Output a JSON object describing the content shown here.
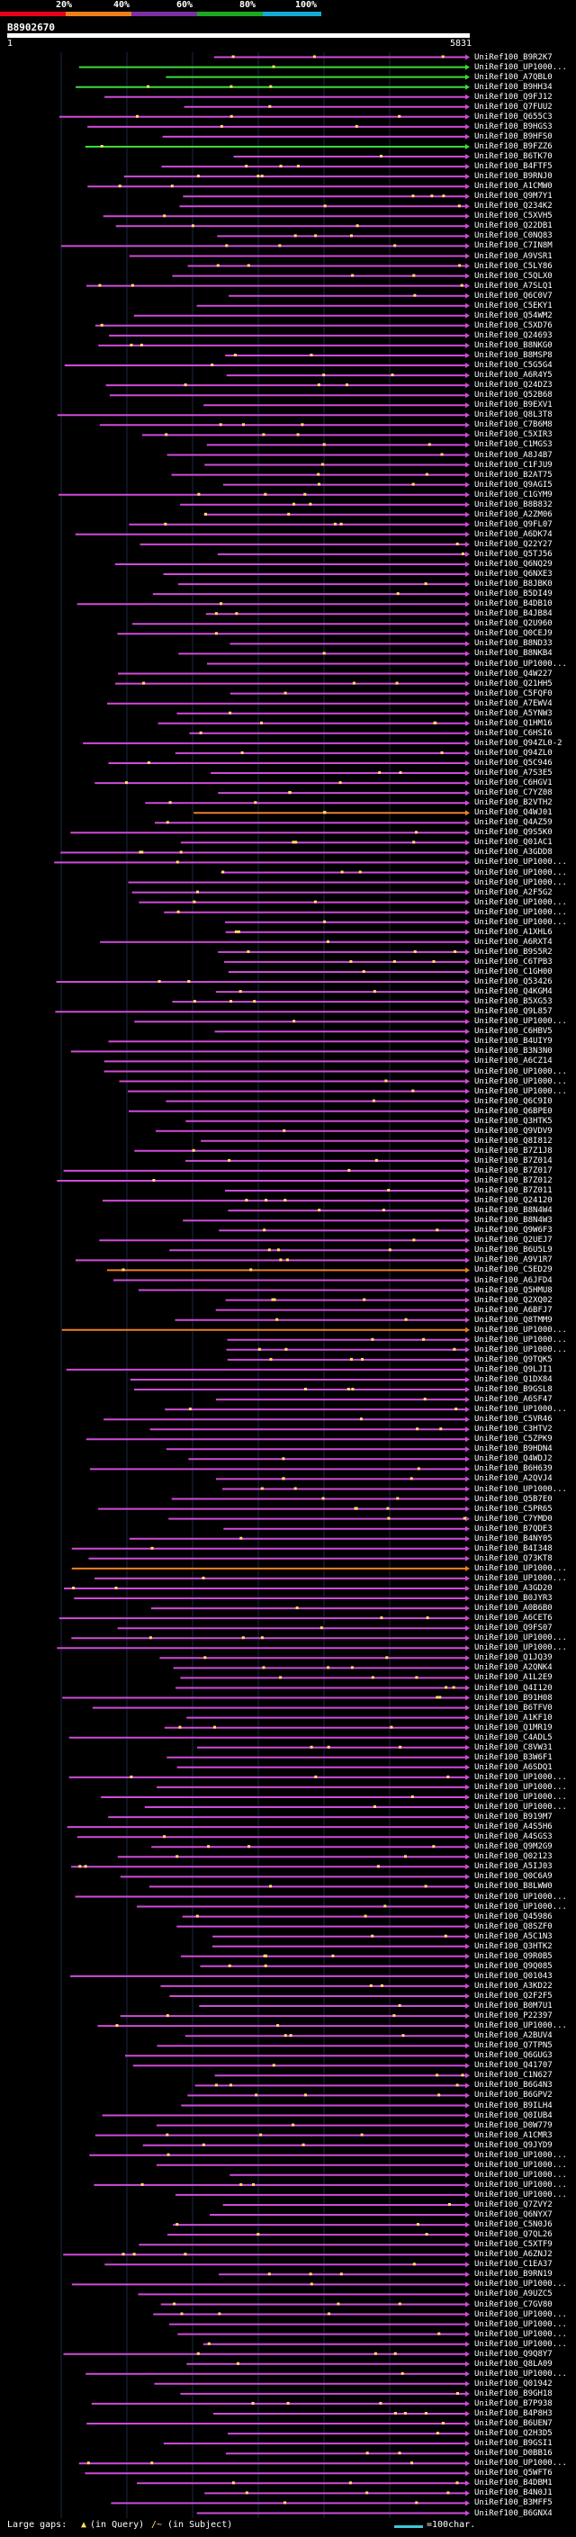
{
  "scale": {
    "labels": [
      "20%",
      "40%",
      "60%",
      "80%",
      "100%"
    ],
    "colors": [
      "#e8001c",
      "#ef7f1a",
      "#7d2fa8",
      "#1ca820",
      "#17a9d6"
    ]
  },
  "query": {
    "id": "B8902670",
    "start": "1",
    "end": "5831"
  },
  "legend": {
    "large_gaps": "Large gaps:",
    "in_query": "(in Query)",
    "in_subject": "(in Subject)",
    "scale_note": "=100char."
  },
  "colors": {
    "hit_pink": "#d04bd8",
    "hit_green": "#3adb3a",
    "hit_orange": "#f08020",
    "gap": "#ffe066",
    "grid": "#1a2a44"
  },
  "hits": [
    "UniRef100_B9R2K7",
    "UniRef100_UP1000...",
    "UniRef100_A7QBL0",
    "UniRef100_B9HH34",
    "UniRef100_Q9FJ12",
    "UniRef100_Q7FUU2",
    "UniRef100_Q655C3",
    "UniRef100_B9HGS3",
    "UniRef100_B9HFS0",
    "UniRef100_B9FZZ6",
    "UniRef100_B6TK70",
    "UniRef100_B4FTF5",
    "UniRef100_B9RNJ0",
    "UniRef100_A1CMW0",
    "UniRef100_Q9M7Y1",
    "UniRef100_Q234K2",
    "UniRef100_C5XVH5",
    "UniRef100_Q22DB1",
    "UniRef100_C0NQ83",
    "UniRef100_C7IN8M",
    "UniRef100_A9VSR1",
    "UniRef100_C5LY86",
    "UniRef100_C5QLX0",
    "UniRef100_A7SLQ1",
    "UniRef100_Q6C0V7",
    "UniRef100_C5EKY1",
    "UniRef100_Q54WM2",
    "UniRef100_C5XD76",
    "UniRef100_Q24693",
    "UniRef100_B8NKG0",
    "UniRef100_B8MSP8",
    "UniRef100_C5G5G4",
    "UniRef100_A6R4Y5",
    "UniRef100_Q24DZ3",
    "UniRef100_Q52B68",
    "UniRef100_B9EXV1",
    "UniRef100_Q8L3T8",
    "UniRef100_C7B6M8",
    "UniRef100_C5XIR3",
    "UniRef100_C1MGS3",
    "UniRef100_A8J4B7",
    "UniRef100_C1FJU9",
    "UniRef100_B2AT75",
    "UniRef100_Q9AGI5",
    "UniRef100_C1GYM9",
    "UniRef100_B8B832",
    "UniRef100_A2ZM06",
    "UniRef100_Q9FL07",
    "UniRef100_A6DK74",
    "UniRef100_Q22Y27",
    "UniRef100_Q5TJ56",
    "UniRef100_Q6NQ29",
    "UniRef100_Q6NXE3",
    "UniRef100_B8JBK0",
    "UniRef100_B5DI49",
    "UniRef100_B4DB10",
    "UniRef100_B4JB84",
    "UniRef100_Q2U960",
    "UniRef100_Q0CEJ9",
    "UniRef100_B8ND33",
    "UniRef100_B8NKB4",
    "UniRef100_UP1000...",
    "UniRef100_Q4W227",
    "UniRef100_Q21HH5",
    "UniRef100_C5FQF0",
    "UniRef100_A7EWV4",
    "UniRef100_A5YNW3",
    "UniRef100_Q1HM16",
    "UniRef100_C6HSI6",
    "UniRef100_Q94ZL0-2",
    "UniRef100_Q94ZL0",
    "UniRef100_Q5C946",
    "UniRef100_A7S3E5",
    "UniRef100_C6HGV1",
    "UniRef100_C7YZ08",
    "UniRef100_B2VTH2",
    "UniRef100_Q4WJ01",
    "UniRef100_Q4AZ59",
    "UniRef100_Q9S5K0",
    "UniRef100_Q01AC1",
    "UniRef100_A3GDD8",
    "UniRef100_UP1000...",
    "UniRef100_UP1000...",
    "UniRef100_UP1000...",
    "UniRef100_A2F5G2",
    "UniRef100_UP1000...",
    "UniRef100_UP1000...",
    "UniRef100_UP1000...",
    "UniRef100_A1XHL6",
    "UniRef100_A6RXT4",
    "UniRef100_B9S5R2",
    "UniRef100_C6TPB3",
    "UniRef100_C1GH00",
    "UniRef100_Q53426",
    "UniRef100_Q4KGM4",
    "UniRef100_B5XG53",
    "UniRef100_Q9L857",
    "UniRef100_UP1000...",
    "UniRef100_C6HBV5",
    "UniRef100_B4UIY9",
    "UniRef100_B3N3N0",
    "UniRef100_A6CZ14",
    "UniRef100_UP1000...",
    "UniRef100_UP1000...",
    "UniRef100_UP1000...",
    "UniRef100_Q6C9I0",
    "UniRef100_Q6BPE0",
    "UniRef100_Q3HTK5",
    "UniRef100_Q9VDV9",
    "UniRef100_Q8I812",
    "UniRef100_B7Z1J8",
    "UniRef100_B7Z014",
    "UniRef100_B7Z017",
    "UniRef100_B7Z012",
    "UniRef100_B7Z011",
    "UniRef100_Q24120",
    "UniRef100_B8N4W4",
    "UniRef100_B8N4W3",
    "UniRef100_Q9W6F3",
    "UniRef100_Q2UEJ7",
    "UniRef100_B6U5L9",
    "UniRef100_A9V1R7",
    "UniRef100_C5ED29",
    "UniRef100_A6JFD4",
    "UniRef100_Q5HMU8",
    "UniRef100_Q2XQ02",
    "UniRef100_A6BFJ7",
    "UniRef100_Q8TMM9",
    "UniRef100_UP1000...",
    "UniRef100_UP1000...",
    "UniRef100_UP1000...",
    "UniRef100_Q9TQK5",
    "UniRef100_Q9LJI1",
    "UniRef100_Q1DX84",
    "UniRef100_B9GSL8",
    "UniRef100_A6SF47",
    "UniRef100_UP1000...",
    "UniRef100_C5VR46",
    "UniRef100_C3HTV2",
    "UniRef100_C5ZPK9",
    "UniRef100_B9HDN4",
    "UniRef100_Q4WDJ2",
    "UniRef100_B6H639",
    "UniRef100_A2QVJ4",
    "UniRef100_UP1000...",
    "UniRef100_Q5B7E0",
    "UniRef100_C5PR65",
    "UniRef100_C7YMD0",
    "UniRef100_B7QDE3",
    "UniRef100_B4NY05",
    "UniRef100_B4I348",
    "UniRef100_Q73KT8",
    "UniRef100_UP1000...",
    "UniRef100_UP1000...",
    "UniRef100_A3GD20",
    "UniRef100_B0JYR3",
    "UniRef100_A0B6B0",
    "UniRef100_A6CET6",
    "UniRef100_Q9FS07",
    "UniRef100_UP1000...",
    "UniRef100_UP1000...",
    "UniRef100_Q1JQ39",
    "UniRef100_A2QNK4",
    "UniRef100_A1L2E9",
    "UniRef100_Q4I120",
    "UniRef100_B91H08",
    "UniRef100_B6TFV0",
    "UniRef100_A1KF10",
    "UniRef100_Q1MR19",
    "UniRef100_C4ADL5",
    "UniRef100_C8VW31",
    "UniRef100_B3W6F1",
    "UniRef100_A6SDQ1",
    "UniRef100_UP1000...",
    "UniRef100_UP1000...",
    "UniRef100_UP1000...",
    "UniRef100_UP1000...",
    "UniRef100_B919M7",
    "UniRef100_A4S5H6",
    "UniRef100_A4SGS3",
    "UniRef100_Q9M2G9",
    "UniRef100_Q02123",
    "UniRef100_A5IJ03",
    "UniRef100_Q0C6A9",
    "UniRef100_B8LWW0",
    "UniRef100_UP1000...",
    "UniRef100_UP1000...",
    "UniRef100_Q45986",
    "UniRef100_Q8SZF0",
    "UniRef100_A5C1N3",
    "UniRef100_Q3HTK2",
    "UniRef100_Q9R0B5",
    "UniRef100_Q9Q085",
    "UniRef100_Q01043",
    "UniRef100_A3KD22",
    "UniRef100_Q2F2F5",
    "UniRef100_B0M7U1",
    "UniRef100_P22397",
    "UniRef100_UP1000...",
    "UniRef100_A2BUV4",
    "UniRef100_Q7TPN5",
    "UniRef100_Q6GUG3",
    "UniRef100_Q41707",
    "UniRef100_C1N627",
    "UniRef100_B6G4N3",
    "UniRef100_B6GPV2",
    "UniRef100_B9ILH4",
    "UniRef100_Q0IUB4",
    "UniRef100_D0W779",
    "UniRef100_A1CMR3",
    "UniRef100_Q9JYD9",
    "UniRef100_UP1000...",
    "UniRef100_UP1000...",
    "UniRef100_UP1000...",
    "UniRef100_UP1000...",
    "UniRef100_UP1000...",
    "UniRef100_Q7ZVY2",
    "UniRef100_Q6NYX7",
    "UniRef100_C5N0J6",
    "UniRef100_Q7QL26",
    "UniRef100_C5XTF9",
    "UniRef100_A6ZNJ2",
    "UniRef100_C1EA37",
    "UniRef100_B9RN19",
    "UniRef100_UP1000...",
    "UniRef100_A9UZC5",
    "UniRef100_C7GV80",
    "UniRef100_UP1000...",
    "UniRef100_UP1000...",
    "UniRef100_UP1000...",
    "UniRef100_UP1000...",
    "UniRef100_Q9Q8Y7",
    "UniRef100_Q8LA09",
    "UniRef100_UP1000...",
    "UniRef100_Q01942",
    "UniRef100_B9GH18",
    "UniRef100_B7P938",
    "UniRef100_B4P8H3",
    "UniRef100_B6UEN7",
    "UniRef100_Q2H3D5",
    "UniRef100_B9GSI1",
    "UniRef100_D0BB16",
    "UniRef100_UP1000...",
    "UniRef100_Q5WFT6",
    "UniRef100_B4DBM1",
    "UniRef100_B4N0J1",
    "UniRef100_B3MFF5",
    "UniRef100_B6GNX4"
  ]
}
